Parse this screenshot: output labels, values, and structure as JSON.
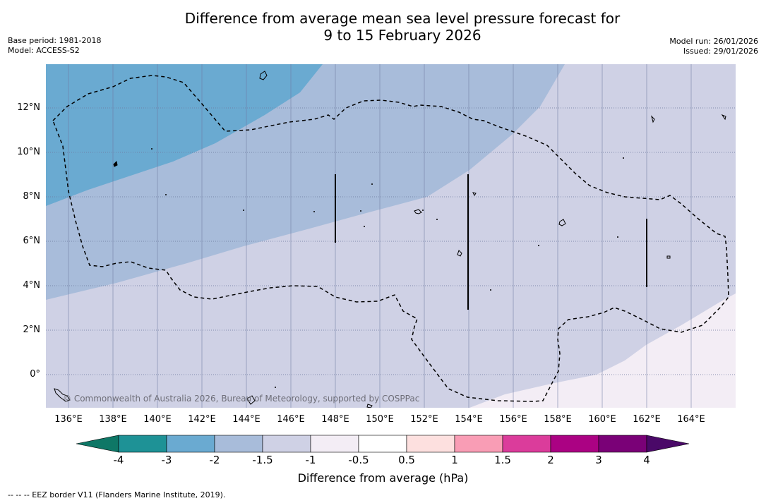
{
  "title": {
    "line1": "Difference from average mean sea level pressure forecast for",
    "line2": "9 to 15 February 2026"
  },
  "meta": {
    "base_period": "Base period: 1981-2018",
    "model": "Model: ACCESS-S2",
    "model_run": "Model run: 26/01/2026",
    "issued": "Issued: 29/01/2026"
  },
  "map": {
    "copyright": "© Commonwealth of Australia 2026, Bureau of Meteorology, supported by COSPPac",
    "lon_range": [
      135,
      166
    ],
    "lat_range": [
      -1.5,
      14
    ],
    "lat_labels": [
      {
        "value": 12,
        "text": "12°N"
      },
      {
        "value": 10,
        "text": "10°N"
      },
      {
        "value": 8,
        "text": "8°N"
      },
      {
        "value": 6,
        "text": "6°N"
      },
      {
        "value": 4,
        "text": "4°N"
      },
      {
        "value": 2,
        "text": "2°N"
      },
      {
        "value": 0,
        "text": "0°"
      }
    ],
    "lon_labels": [
      {
        "value": 136,
        "text": "136°E"
      },
      {
        "value": 138,
        "text": "138°E"
      },
      {
        "value": 140,
        "text": "140°E"
      },
      {
        "value": 142,
        "text": "142°E"
      },
      {
        "value": 144,
        "text": "144°E"
      },
      {
        "value": 146,
        "text": "146°E"
      },
      {
        "value": 148,
        "text": "148°E"
      },
      {
        "value": 150,
        "text": "150°E"
      },
      {
        "value": 152,
        "text": "152°E"
      },
      {
        "value": 154,
        "text": "154°E"
      },
      {
        "value": 156,
        "text": "156°E"
      },
      {
        "value": 158,
        "text": "158°E"
      },
      {
        "value": 160,
        "text": "160°E"
      },
      {
        "value": 162,
        "text": "162°E"
      },
      {
        "value": 164,
        "text": "164°E"
      }
    ],
    "fill_colors": {
      "band_minus2": "#6aaad1",
      "band_minus1_5": "#a8bcda",
      "band_minus1": "#cfd1e5",
      "band_minus0_5": "#f3edf5"
    }
  },
  "colorbar": {
    "title": "Difference from average (hPa)",
    "tick_labels": [
      "-4",
      "-3",
      "-2",
      "-1.5",
      "-1",
      "-0.5",
      "0.5",
      "1",
      "1.5",
      "2",
      "3",
      "4"
    ],
    "under_color": "#0e7766",
    "over_color": "#4a0968",
    "colors": [
      "#1e9296",
      "#6aaad1",
      "#a8bcda",
      "#cfd1e5",
      "#f3edf5",
      "#ffffff",
      "#fde0df",
      "#f99db5",
      "#db3c9b",
      "#ab0283",
      "#7a0177"
    ]
  },
  "footnote": "--  --  -- EEZ border V11 (Flanders Marine Institute, 2019)."
}
